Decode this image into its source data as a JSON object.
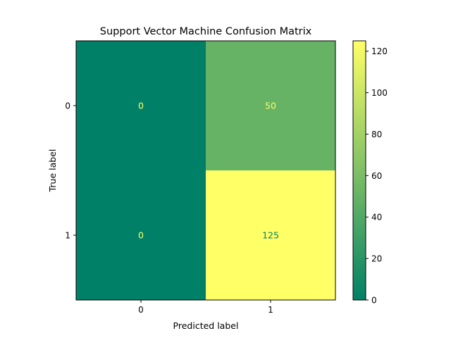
{
  "chart_data": {
    "type": "heatmap",
    "title": "Support Vector Machine Confusion Matrix",
    "xlabel": "Predicted label",
    "ylabel": "True label",
    "x_categories": [
      "0",
      "1"
    ],
    "y_categories": [
      "0",
      "1"
    ],
    "values": [
      [
        0,
        50
      ],
      [
        0,
        125
      ]
    ],
    "colormap": "summer",
    "color_low": "#008066",
    "color_high": "#ffff66",
    "colorbar": {
      "range": [
        0,
        125
      ],
      "ticks": [
        0,
        20,
        40,
        60,
        80,
        100,
        120
      ]
    }
  }
}
